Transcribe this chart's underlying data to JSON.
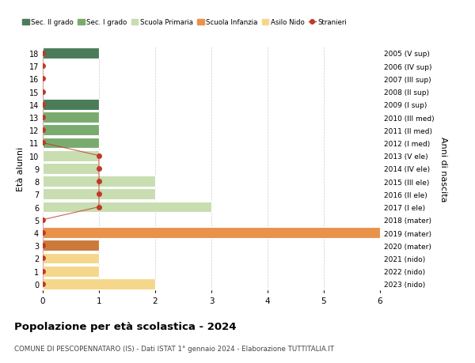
{
  "ages": [
    18,
    17,
    16,
    15,
    14,
    13,
    12,
    11,
    10,
    9,
    8,
    7,
    6,
    5,
    4,
    3,
    2,
    1,
    0
  ],
  "bar_values": [
    1,
    0,
    0,
    0,
    1,
    1,
    1,
    1,
    1,
    1,
    2,
    2,
    3,
    0,
    6,
    1,
    1,
    1,
    2
  ],
  "bar_colors": [
    "#4a7c59",
    "#4a7c59",
    "#4a7c59",
    "#4a7c59",
    "#4a7c59",
    "#7aab6e",
    "#7aab6e",
    "#7aab6e",
    "#c8ddb0",
    "#c8ddb0",
    "#c8ddb0",
    "#c8ddb0",
    "#c8ddb0",
    "#c8ddb0",
    "#e8924a",
    "#cc7a3a",
    "#f5d78c",
    "#f5d78c",
    "#f5d78c"
  ],
  "stranieri_values_by_age": {
    "18": 0,
    "17": 0,
    "16": 0,
    "15": 0,
    "14": 0,
    "13": 0,
    "12": 0,
    "11": 0,
    "10": 1,
    "9": 1,
    "8": 1,
    "7": 1,
    "6": 1,
    "5": 0,
    "4": 0,
    "3": 0,
    "2": 0,
    "1": 0,
    "0": 0
  },
  "right_labels_by_age": {
    "18": "2005 (V sup)",
    "17": "2006 (IV sup)",
    "16": "2007 (III sup)",
    "15": "2008 (II sup)",
    "14": "2009 (I sup)",
    "13": "2010 (III med)",
    "12": "2011 (II med)",
    "11": "2012 (I med)",
    "10": "2013 (V ele)",
    "9": "2014 (IV ele)",
    "8": "2015 (III ele)",
    "7": "2016 (II ele)",
    "6": "2017 (I ele)",
    "5": "2018 (mater)",
    "4": "2019 (mater)",
    "3": "2020 (mater)",
    "2": "2021 (nido)",
    "1": "2022 (nido)",
    "0": "2023 (nido)"
  },
  "ylabel_right": "Anni di nascita",
  "xlim": [
    0,
    6
  ],
  "title": "Popolazione per età scolastica - 2024",
  "subtitle": "COMUNE DI PESCOPENNATARO (IS) - Dati ISTAT 1° gennaio 2024 - Elaborazione TUTTITALIA.IT",
  "legend_items": [
    {
      "label": "Sec. II grado",
      "color": "#4a7c59"
    },
    {
      "label": "Sec. I grado",
      "color": "#7aab6e"
    },
    {
      "label": "Scuola Primaria",
      "color": "#c8ddb0"
    },
    {
      "label": "Scuola Infanzia",
      "color": "#e8924a"
    },
    {
      "label": "Asilo Nido",
      "color": "#f5d78c"
    },
    {
      "label": "Stranieri",
      "color": "#c0392b"
    }
  ],
  "bg_color": "#ffffff",
  "grid_color": "#cccccc",
  "bar_height": 0.85
}
